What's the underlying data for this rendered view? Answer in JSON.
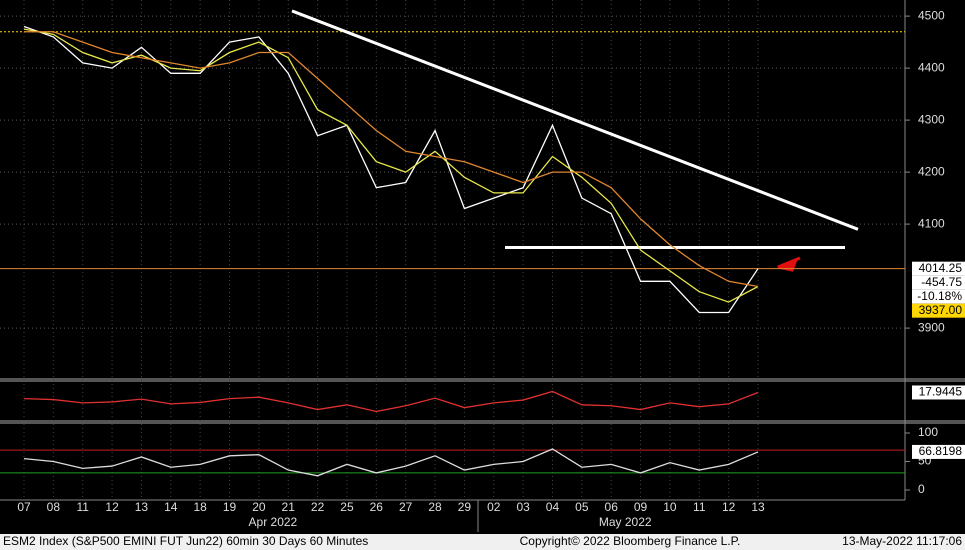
{
  "footer": {
    "left": "ESM2 Index (S&P500 EMINI FUT  Jun22) 60min 30 Days 60 Minutes",
    "center": "Copyright© 2022 Bloomberg Finance L.P.",
    "right": "13-May-2022 11:17:06"
  },
  "chart_data": [
    {
      "type": "line",
      "categories": [
        "07",
        "08",
        "11",
        "12",
        "13",
        "14",
        "18",
        "19",
        "20",
        "21",
        "22",
        "25",
        "26",
        "27",
        "28",
        "29",
        "02",
        "03",
        "04",
        "05",
        "06",
        "09",
        "10",
        "11",
        "12",
        "13"
      ],
      "months": [
        {
          "label": "Apr 2022",
          "at": 8
        },
        {
          "label": "May 2022",
          "at": 20
        }
      ],
      "series": [
        {
          "color": "#ffffff",
          "values": [
            4480,
            4460,
            4410,
            4400,
            4440,
            4390,
            4390,
            4450,
            4460,
            4390,
            4270,
            4290,
            4170,
            4180,
            4280,
            4130,
            4150,
            4170,
            4290,
            4150,
            4120,
            3990,
            3990,
            3930,
            3930,
            4014.25
          ]
        },
        {
          "color": "#e8e84a",
          "values": [
            4475,
            4465,
            4430,
            4410,
            4425,
            4400,
            4395,
            4430,
            4450,
            4420,
            4320,
            4290,
            4220,
            4200,
            4240,
            4190,
            4160,
            4160,
            4230,
            4190,
            4140,
            4050,
            4010,
            3970,
            3950,
            3980
          ]
        },
        {
          "color": "#e0872f",
          "values": [
            4470,
            4470,
            4450,
            4430,
            4420,
            4410,
            4400,
            4410,
            4430,
            4430,
            4380,
            4330,
            4280,
            4240,
            4230,
            4220,
            4200,
            4180,
            4200,
            4200,
            4170,
            4110,
            4060,
            4020,
            3990,
            3980
          ]
        }
      ],
      "ylim": [
        3804,
        4531
      ],
      "yticks": [
        3900,
        4100,
        4200,
        4300,
        4400,
        4500
      ],
      "grid": true,
      "reference_lines": [
        {
          "value": 4470,
          "color": "#ffd700"
        },
        {
          "value": 4014.25,
          "color": "#e0872f"
        }
      ],
      "trendlines": [
        {
          "start": 4510,
          "end": 4090
        },
        {
          "start": 4055,
          "end": 4055
        }
      ],
      "price_labels": [
        {
          "value": 4014.25,
          "label": "4014.25"
        },
        {
          "value": -454.75,
          "label": "-454.75"
        },
        {
          "value": -10.18,
          "label": "-10.18%"
        },
        {
          "value": 3937,
          "label": "3937.00"
        }
      ]
    },
    {
      "type": "line",
      "series": [
        {
          "color": "#e03030",
          "values": [
            5,
            3,
            -4,
            -2,
            4,
            -6,
            -3,
            5,
            8,
            -4,
            -18,
            -8,
            -22,
            -10,
            6,
            -14,
            -4,
            2,
            20,
            -8,
            -10,
            -18,
            -4,
            -12,
            -6,
            17.9445
          ]
        }
      ],
      "ylim": [
        -40,
        40
      ],
      "price_labels": [
        {
          "value": 17.9445,
          "label": "17.9445"
        }
      ]
    },
    {
      "type": "line",
      "series": [
        {
          "color": "#dddddd",
          "values": [
            55,
            50,
            38,
            42,
            58,
            40,
            45,
            60,
            62,
            35,
            25,
            45,
            30,
            42,
            60,
            35,
            45,
            50,
            72,
            40,
            45,
            30,
            48,
            35,
            45,
            66.8198
          ]
        }
      ],
      "ylim": [
        -17.5,
        115.8
      ],
      "yticks": [
        0,
        50,
        100
      ],
      "reference_lines": [
        {
          "value": 70,
          "color": "#c02020"
        },
        {
          "value": 30,
          "color": "#20a020"
        }
      ],
      "price_labels": [
        {
          "value": 66.8198,
          "label": "66.8198"
        }
      ]
    }
  ]
}
